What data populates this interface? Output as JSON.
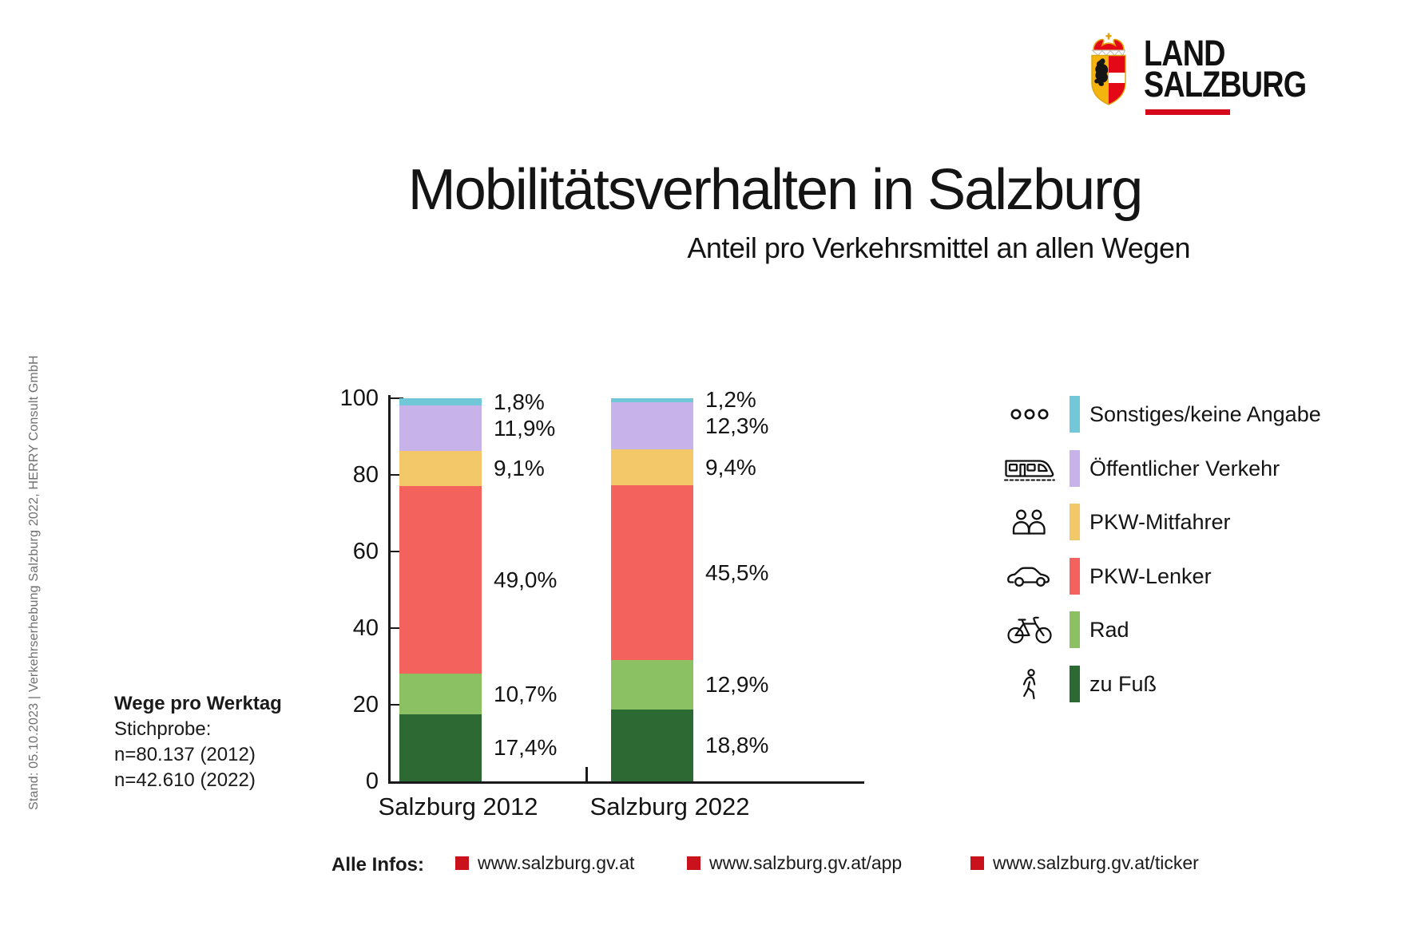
{
  "sidebar_note": {
    "text": "Stand: 05.10.2023 | Verkehrserhebung Salzburg 2022, HERRY Consult GmbH"
  },
  "logo": {
    "line1": "LAND",
    "line2": "SALZBURG",
    "brand_red": "#d6081b",
    "crest_gold": "#f5b30d"
  },
  "header": {
    "title": "Mobilitätsverhalten in Salzburg",
    "subtitle": "Anteil pro Verkehrsmittel an allen Wegen"
  },
  "info_block": {
    "line1": "Wege pro Werktag",
    "line2": "Stichprobe:",
    "line3": "n=80.137 (2012)",
    "line4": "n=42.610 (2022)"
  },
  "chart_data": {
    "type": "bar",
    "subtype": "stacked-percentage",
    "title": "Mobilitätsverhalten in Salzburg",
    "subtitle": "Anteil pro Verkehrsmittel an allen Wegen",
    "categories": [
      "Salzburg 2012",
      "Salzburg 2022"
    ],
    "series": [
      {
        "name": "zu Fuß",
        "values": [
          17.4,
          18.8
        ],
        "labels": [
          "17,4%",
          "18,8%"
        ],
        "color": "#2d6a33"
      },
      {
        "name": "Rad",
        "values": [
          10.7,
          12.9
        ],
        "labels": [
          "10,7%",
          "12,9%"
        ],
        "color": "#8bc162"
      },
      {
        "name": "PKW-Lenker",
        "values": [
          49.0,
          45.5
        ],
        "labels": [
          "49,0%",
          "45,5%"
        ],
        "color": "#f4625d"
      },
      {
        "name": "PKW-Mitfahrer",
        "values": [
          9.1,
          9.4
        ],
        "labels": [
          "9,1%",
          "9,4%"
        ],
        "color": "#f3c869"
      },
      {
        "name": "Öffentlicher Verkehr",
        "values": [
          11.9,
          12.3
        ],
        "labels": [
          "11,9%",
          "12,3%"
        ],
        "color": "#c7b2e9"
      },
      {
        "name": "Sonstiges/keine Angabe",
        "values": [
          1.8,
          1.2
        ],
        "labels": [
          "1,8%",
          "1,2%"
        ],
        "color": "#72c7d8"
      }
    ],
    "stack_order": "bottom-to-top",
    "ylim": [
      0,
      100
    ],
    "y_ticks": [
      0,
      20,
      40,
      60,
      80,
      100
    ],
    "grid": false,
    "legend_position": "right"
  },
  "legend": {
    "items": [
      {
        "icon": "three-circles-icon",
        "label": "Sonstiges/keine Angabe",
        "color": "#72c7d8"
      },
      {
        "icon": "train-icon",
        "label": "Öffentlicher Verkehr",
        "color": "#c7b2e9"
      },
      {
        "icon": "passengers-icon",
        "label": "PKW-Mitfahrer",
        "color": "#f3c869"
      },
      {
        "icon": "car-icon",
        "label": "PKW-Lenker",
        "color": "#f4625d"
      },
      {
        "icon": "bicycle-icon",
        "label": "Rad",
        "color": "#8bc162"
      },
      {
        "icon": "pedestrian-icon",
        "label": "zu Fuß",
        "color": "#2d6a33"
      }
    ]
  },
  "footer": {
    "label": "Alle Infos:",
    "bullet_color": "#c9121c",
    "links": [
      "www.salzburg.gv.at",
      "www.salzburg.gv.at/app",
      "www.salzburg.gv.at/ticker"
    ]
  }
}
